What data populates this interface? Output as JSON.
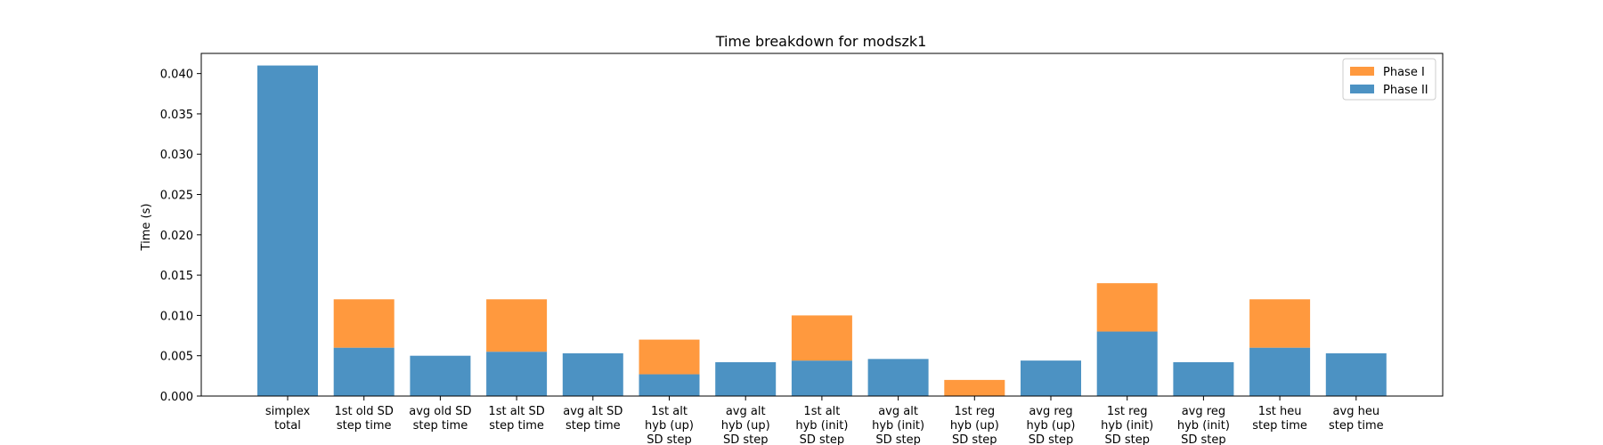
{
  "chart_data": {
    "type": "bar",
    "stacked": true,
    "title": "Time breakdown for modszk1",
    "xlabel": "",
    "ylabel": "Time (s)",
    "ylim": [
      0,
      0.0425
    ],
    "yticks": [
      "0.000",
      "0.005",
      "0.010",
      "0.015",
      "0.020",
      "0.025",
      "0.030",
      "0.035",
      "0.040"
    ],
    "ytick_values": [
      0,
      0.005,
      0.01,
      0.015,
      0.02,
      0.025,
      0.03,
      0.035,
      0.04
    ],
    "grid": false,
    "legend_position": "top-right",
    "categories": [
      [
        "simplex",
        "total"
      ],
      [
        "1st old SD",
        "step time"
      ],
      [
        "avg old SD",
        "step time"
      ],
      [
        "1st alt SD",
        "step time"
      ],
      [
        "avg alt SD",
        "step time"
      ],
      [
        "1st alt",
        "hyb (up)",
        "SD step"
      ],
      [
        "avg alt",
        "hyb (up)",
        "SD step"
      ],
      [
        "1st alt",
        "hyb (init)",
        "SD step"
      ],
      [
        "avg alt",
        "hyb (init)",
        "SD step"
      ],
      [
        "1st reg",
        "hyb (up)",
        "SD step"
      ],
      [
        "avg reg",
        "hyb (up)",
        "SD step"
      ],
      [
        "1st reg",
        "hyb (init)",
        "SD step"
      ],
      [
        "avg reg",
        "hyb (init)",
        "SD step"
      ],
      [
        "1st heu",
        "step time"
      ],
      [
        "avg heu",
        "step time"
      ]
    ],
    "series": [
      {
        "name": "Phase II",
        "color": "#4c92c3",
        "values": [
          0.041,
          0.006,
          0.005,
          0.0055,
          0.0053,
          0.0027,
          0.0042,
          0.0044,
          0.0046,
          0.0,
          0.0044,
          0.008,
          0.0042,
          0.006,
          0.0053
        ]
      },
      {
        "name": "Phase I",
        "color": "#ff993e",
        "values": [
          0.0,
          0.006,
          0.0,
          0.0065,
          0.0,
          0.0043,
          0.0,
          0.0056,
          0.0,
          0.002,
          0.0,
          0.006,
          0.0,
          0.006,
          0.0
        ]
      }
    ],
    "legend_order": [
      "Phase I",
      "Phase II"
    ]
  }
}
